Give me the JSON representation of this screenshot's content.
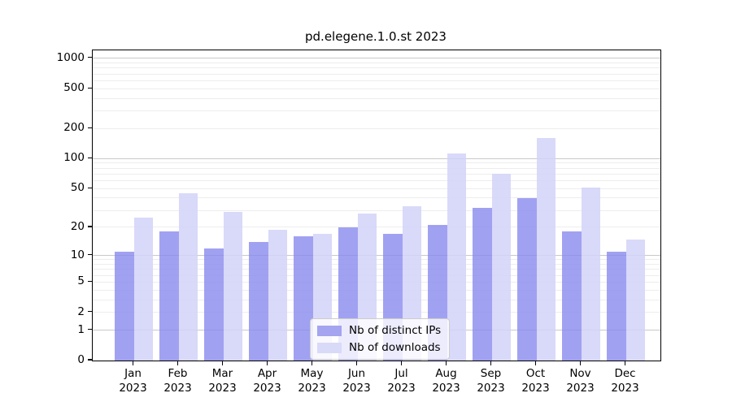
{
  "title": "pd.elegene.1.0.st 2023",
  "chart_data": {
    "type": "bar",
    "title": "pd.elegene.1.0.st 2023",
    "categories": [
      "Jan",
      "Feb",
      "Mar",
      "Apr",
      "May",
      "Jun",
      "Jul",
      "Aug",
      "Sep",
      "Oct",
      "Nov",
      "Dec"
    ],
    "category_year": "2023",
    "series": [
      {
        "name": "Nb of distinct IPs",
        "color": "#a4a4f0",
        "values": [
          11,
          18,
          12,
          14,
          16,
          20,
          17,
          21,
          32,
          40,
          18,
          11
        ]
      },
      {
        "name": "Nb of downloads",
        "color": "#d9d9f8",
        "values": [
          25,
          45,
          29,
          19,
          17,
          28,
          33,
          112,
          70,
          162,
          51,
          15
        ]
      }
    ],
    "yscale": "log1p",
    "ylim": [
      0,
      1200
    ],
    "y_ticks": [
      0,
      1,
      2,
      5,
      10,
      20,
      50,
      100,
      200,
      500,
      1000
    ],
    "grid": true,
    "legend_position": "lower center",
    "xlabel": "",
    "ylabel": ""
  },
  "colors": {
    "major_grid": "#c9c9c9",
    "minor_grid": "#ededed",
    "spine": "#000000",
    "background": "#ffffff",
    "bar_ips_rgba": "rgba(138,138,239,0.8)",
    "bar_downloads_rgba": "rgba(210,210,248,0.85)"
  }
}
